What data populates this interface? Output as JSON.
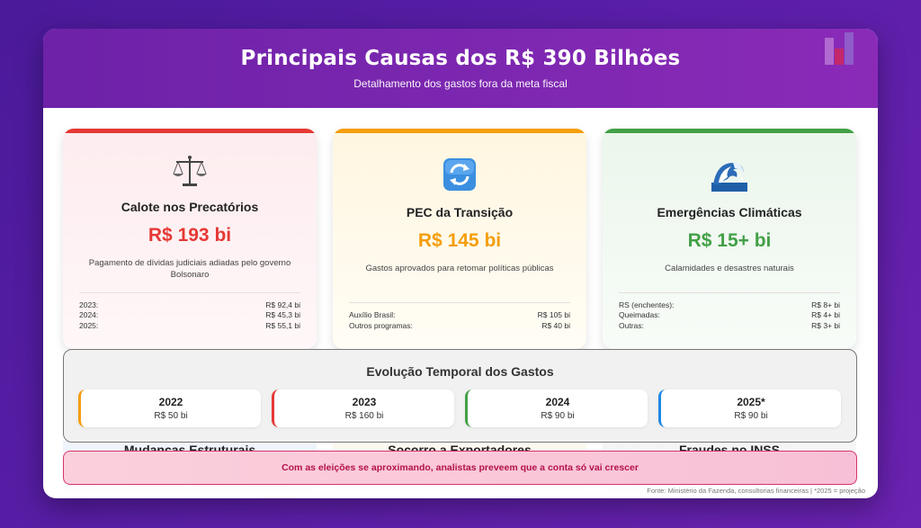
{
  "header": {
    "title": "Principais Causas dos R$ 390 Bilhões",
    "subtitle": "Detalhamento dos gastos fora da meta fiscal",
    "icon": "bar-chart-icon"
  },
  "causes": [
    {
      "icon": "balance-scale-icon",
      "title": "Calote nos Precatórios",
      "amount": "R$ 193 bi",
      "description": "Pagamento de dívidas judiciais adiadas pelo governo Bolsonaro",
      "color": "#e53935",
      "rows": [
        {
          "label": "2023:",
          "value": "R$ 92,4 bi"
        },
        {
          "label": "2024:",
          "value": "R$ 45,3 bi"
        },
        {
          "label": "2025:",
          "value": "R$ 55,1 bi"
        }
      ]
    },
    {
      "icon": "refresh-arrows-icon",
      "title": "PEC da Transição",
      "amount": "R$ 145 bi",
      "description": "Gastos aprovados para retomar políticas públicas",
      "color": "#f59e0b",
      "rows": [
        {
          "label": "Auxílio Brasil:",
          "value": "R$ 105 bi"
        },
        {
          "label": "Outros programas:",
          "value": "R$ 40 bi"
        }
      ]
    },
    {
      "icon": "water-wave-icon",
      "title": "Emergências Climáticas",
      "amount": "R$ 15+ bi",
      "description": "Calamidades e desastres naturais",
      "color": "#43a047",
      "rows": [
        {
          "label": "RS (enchentes):",
          "value": "R$ 8+ bi"
        },
        {
          "label": "Queimadas:",
          "value": "R$ 4+ bi"
        },
        {
          "label": "Outras:",
          "value": "R$ 3+ bi"
        }
      ]
    }
  ],
  "timeline": {
    "title": "Evolução Temporal dos Gastos",
    "years": [
      {
        "year": "2022",
        "value": "R$ 50 bi",
        "color": "#f59e0b"
      },
      {
        "year": "2023",
        "value": "R$ 160 bi",
        "color": "#e53935"
      },
      {
        "year": "2024",
        "value": "R$ 90 bi",
        "color": "#43a047"
      },
      {
        "year": "2025*",
        "value": "R$ 90 bi",
        "color": "#1e88e5"
      }
    ]
  },
  "hidden_sections": [
    {
      "title": "Mudanças Estruturais"
    },
    {
      "title": "Socorro a Exportadores"
    },
    {
      "title": "Fraudes no INSS"
    }
  ],
  "alert": {
    "text": "Com as eleições se aproximando, analistas preveem que a conta só vai crescer"
  },
  "source": "Fonte: Ministério da Fazenda, consultorias financeiras | *2025 = projeção"
}
